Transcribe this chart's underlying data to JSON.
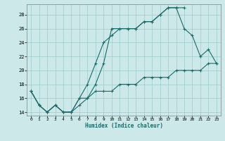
{
  "xlabel": "Humidex (Indice chaleur)",
  "bg_color": "#cce8e8",
  "line_color": "#1a6b6b",
  "grid_color": "#99cccc",
  "xlim": [
    -0.5,
    23.5
  ],
  "ylim": [
    13.5,
    29.5
  ],
  "xtick_vals": [
    0,
    1,
    2,
    3,
    4,
    5,
    6,
    7,
    8,
    9,
    10,
    11,
    12,
    13,
    14,
    15,
    16,
    17,
    18,
    19,
    20,
    21,
    22,
    23
  ],
  "ytick_vals": [
    14,
    16,
    18,
    20,
    22,
    24,
    26,
    28
  ],
  "series1_x": [
    0,
    1,
    2,
    3,
    4,
    5,
    6,
    7,
    8,
    9,
    10,
    11,
    12,
    13,
    14,
    15,
    16,
    17,
    18,
    19
  ],
  "series1_y": [
    17,
    15,
    14,
    15,
    14,
    14,
    15,
    16,
    18,
    21,
    26,
    26,
    26,
    26,
    27,
    27,
    28,
    29,
    29,
    29
  ],
  "series2_x": [
    0,
    1,
    2,
    3,
    4,
    5,
    6,
    7,
    8,
    9,
    10,
    11,
    12,
    13,
    14,
    15,
    16,
    17,
    18,
    19,
    20,
    21,
    22,
    23
  ],
  "series2_y": [
    17,
    15,
    14,
    15,
    14,
    14,
    16,
    18,
    21,
    24,
    25,
    26,
    26,
    26,
    27,
    27,
    28,
    29,
    29,
    26,
    25,
    22,
    23,
    21
  ],
  "series3_x": [
    0,
    1,
    2,
    3,
    4,
    5,
    6,
    7,
    8,
    9,
    10,
    11,
    12,
    13,
    14,
    15,
    16,
    17,
    18,
    19,
    20,
    21,
    22,
    23
  ],
  "series3_y": [
    17,
    15,
    14,
    15,
    14,
    14,
    16,
    16,
    17,
    17,
    17,
    18,
    18,
    18,
    19,
    19,
    19,
    19,
    20,
    20,
    20,
    20,
    21,
    21
  ],
  "lw": 0.8,
  "ms": 3.5,
  "xlabel_fontsize": 5.5,
  "tick_fontsize": 4.5
}
